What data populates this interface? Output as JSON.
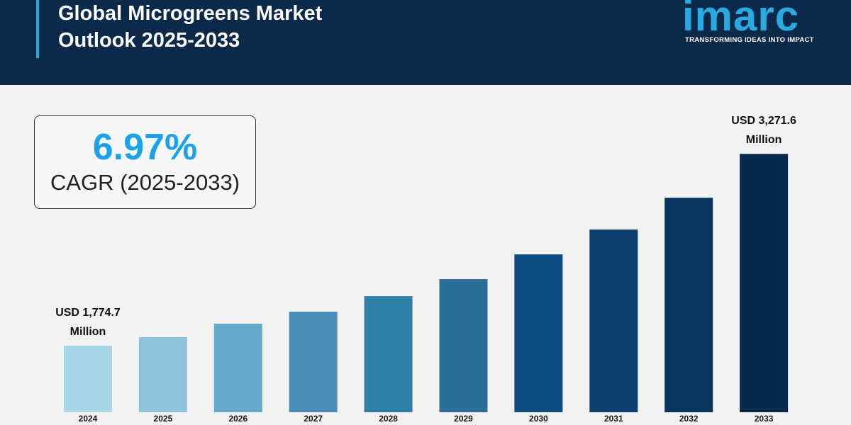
{
  "header": {
    "title": "Global Microgreens Market Outlook 2025-2033",
    "logo": "imarc",
    "tagline": "TRANSFORMING IDEAS INTO IMPACT"
  },
  "cagr": {
    "value": "6.97%",
    "label": "CAGR (2025-2033)"
  },
  "chart_data": {
    "type": "bar",
    "categories": [
      "2024",
      "2025",
      "2026",
      "2027",
      "2028",
      "2029",
      "2030",
      "2031",
      "2032",
      "2033"
    ],
    "values": [
      1774.7,
      1841,
      1946,
      2040,
      2161,
      2294,
      2487,
      2681,
      2929,
      3271.6
    ],
    "value_labels": [
      "USD 1,774.7 Million",
      null,
      null,
      null,
      null,
      null,
      null,
      null,
      null,
      "USD 3,271.6 Million"
    ],
    "colors": [
      "#a8d5e8",
      "#8fc3db",
      "#65a8c8",
      "#4a8fb5",
      "#2f80a8",
      "#2a6f98",
      "#0d4c80",
      "#0a3f6e",
      "#08365f",
      "#062a4b"
    ],
    "ylim": [
      1255,
      3400
    ]
  }
}
